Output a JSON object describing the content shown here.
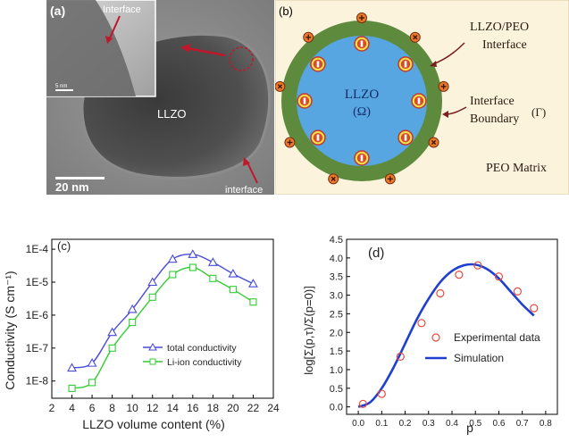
{
  "panel_a": {
    "label": "(a)",
    "inset_interface_label": "Interface",
    "inset_scale_label": "5 nm",
    "particle_label": "LLZO",
    "bottom_interface_label": "interface",
    "scale_bar_label": "20 nm"
  },
  "panel_b": {
    "label": "(b)",
    "core_label": "LLZO",
    "core_symbol": "(Ω)",
    "interface_label_line1": "LLZO/PEO",
    "interface_label_line2": "Interface",
    "boundary_label_line1": "Interface",
    "boundary_label_line2": "Boundary",
    "boundary_symbol": "(Γ)",
    "matrix_label": "PEO Matrix",
    "colors": {
      "matrix": "#fbf3dc",
      "interface_shell": "#5d8a3c",
      "core": "#58a6e1",
      "charge": "#f4e04d",
      "charge_ring": "#c0392b"
    }
  },
  "chart_data": [
    {
      "type": "line",
      "panel_label": "(c)",
      "xlabel": "LLZO volume content (%)",
      "ylabel": "Conductivity (S cm⁻¹)",
      "xlim": [
        2,
        24
      ],
      "x_ticks": [
        2,
        4,
        6,
        8,
        10,
        12,
        14,
        16,
        18,
        20,
        22,
        24
      ],
      "y_scale": "log",
      "ylim": [
        3e-09,
        0.0002
      ],
      "y_tick_labels": [
        "1E-8",
        "1E-7",
        "1E-6",
        "1E-5",
        "1E-4"
      ],
      "legend_position": "lower-right",
      "series": [
        {
          "name": "total conductivity",
          "marker": "triangle",
          "color": "#4a4ad8",
          "x": [
            4,
            6,
            8,
            10,
            12,
            14,
            16,
            18,
            20,
            22
          ],
          "values": [
            2.5e-08,
            3.5e-08,
            3e-07,
            1.5e-06,
            1e-05,
            5e-05,
            7e-05,
            4e-05,
            1.8e-05,
            9e-06
          ]
        },
        {
          "name": "Li-ion conductivity",
          "marker": "square",
          "color": "#33cc33",
          "x": [
            4,
            6,
            8,
            10,
            12,
            14,
            16,
            18,
            20,
            22
          ],
          "values": [
            6e-09,
            9e-09,
            1e-07,
            6e-07,
            3.5e-06,
            1.7e-05,
            2.8e-05,
            1.3e-05,
            6e-06,
            2.5e-06
          ]
        }
      ]
    },
    {
      "type": "scatter",
      "panel_label": "(d)",
      "xlabel": "p",
      "ylabel": "log[Σ(p,τ)/Σ(p=0)]",
      "xlim": [
        -0.05,
        0.85
      ],
      "x_ticks": [
        0.0,
        0.1,
        0.2,
        0.3,
        0.4,
        0.5,
        0.6,
        0.7,
        0.8
      ],
      "x_tick_labels": [
        "0.0",
        "0.1",
        "0.2",
        "0.3",
        "0.4",
        "0.5",
        "0.6",
        "0.7",
        "0.8"
      ],
      "ylim": [
        -0.2,
        4.5
      ],
      "y_ticks": [
        0,
        0.5,
        1,
        1.5,
        2,
        2.5,
        3,
        3.5,
        4,
        4.5
      ],
      "y_tick_labels": [
        "0.0",
        "0.5",
        "1.0",
        "1.5",
        "2.0",
        "2.5",
        "3.0",
        "3.5",
        "4.0",
        "4.5"
      ],
      "legend_position": "lower-right",
      "series": [
        {
          "name": "Experimental data",
          "marker": "circle",
          "color": "#e74c3c",
          "x": [
            0.02,
            0.1,
            0.18,
            0.27,
            0.35,
            0.43,
            0.51,
            0.6,
            0.68,
            0.75
          ],
          "values": [
            0.08,
            0.35,
            1.35,
            2.25,
            3.05,
            3.55,
            3.8,
            3.5,
            3.1,
            2.65
          ]
        },
        {
          "name": "Simulation",
          "marker": "line",
          "color": "#1f3fcf",
          "x": [
            0.0,
            0.05,
            0.1,
            0.15,
            0.2,
            0.25,
            0.3,
            0.35,
            0.4,
            0.45,
            0.5,
            0.55,
            0.6,
            0.65,
            0.7,
            0.75
          ],
          "values": [
            0.0,
            0.12,
            0.5,
            1.05,
            1.7,
            2.35,
            2.9,
            3.35,
            3.65,
            3.8,
            3.82,
            3.7,
            3.45,
            3.1,
            2.75,
            2.45
          ]
        }
      ]
    }
  ]
}
